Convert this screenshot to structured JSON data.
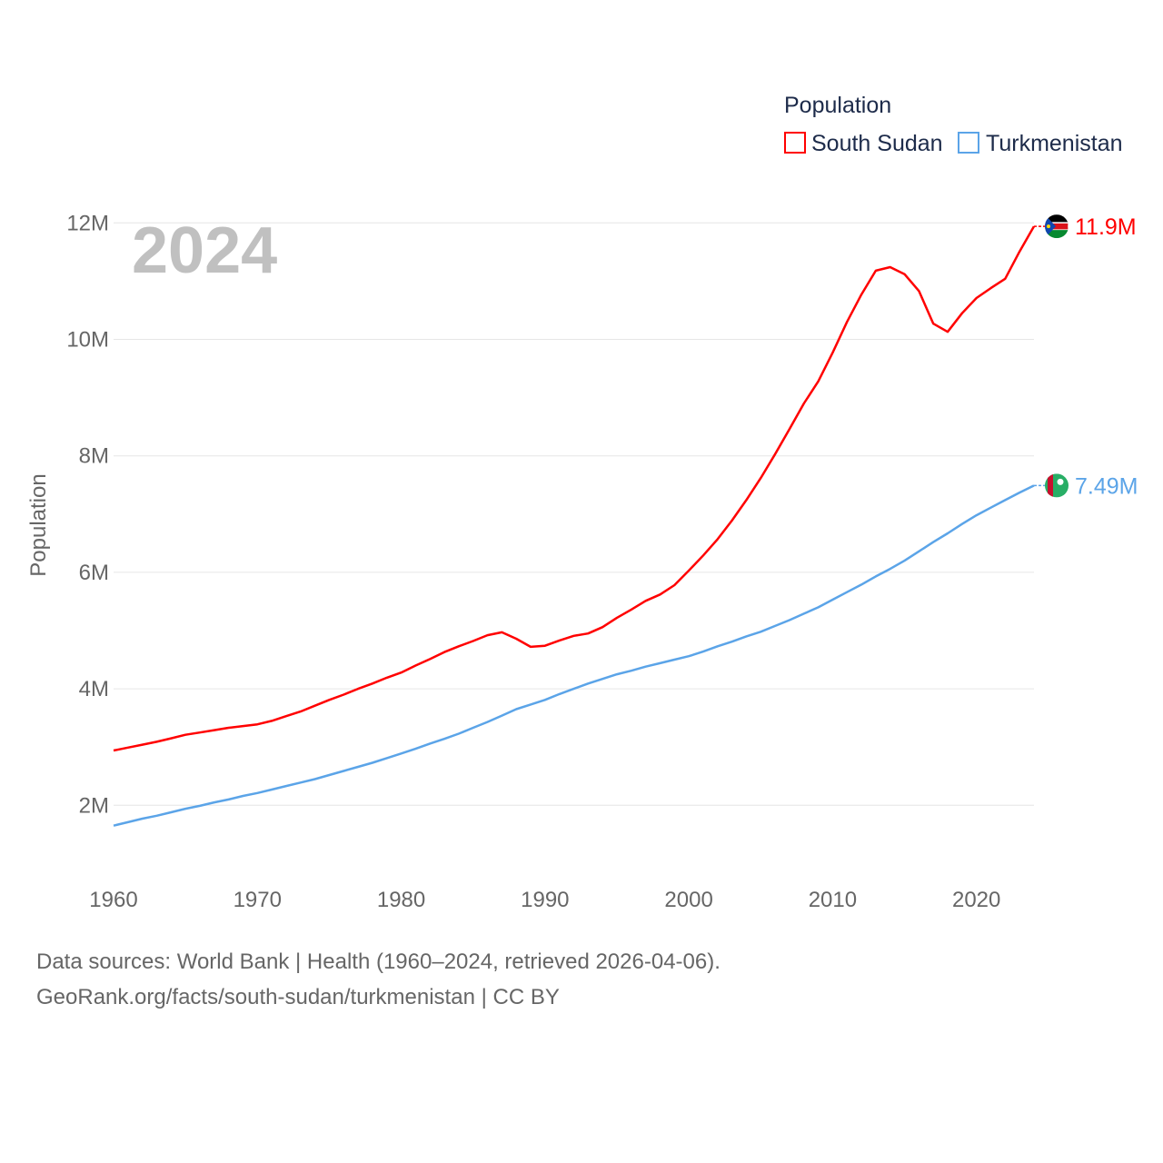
{
  "chart_data": {
    "type": "line",
    "year_label": "2024",
    "ylabel": "Population",
    "xlabel": "",
    "legend_title": "Population",
    "legend_position": "top-right",
    "xlim": [
      1960,
      2024
    ],
    "ylim": [
      0,
      12000000
    ],
    "x_ticks": [
      "1960",
      "1970",
      "1980",
      "1990",
      "2000",
      "2010",
      "2020"
    ],
    "y_ticks": [
      {
        "v": 2,
        "label": "2M"
      },
      {
        "v": 4,
        "label": "4M"
      },
      {
        "v": 6,
        "label": "6M"
      },
      {
        "v": 8,
        "label": "8M"
      },
      {
        "v": 10,
        "label": "10M"
      },
      {
        "v": 12,
        "label": "12M"
      }
    ],
    "grid": true,
    "x_start": 1960,
    "series": [
      {
        "name": "South Sudan",
        "color": "#ff0000",
        "end_label": "11.9M",
        "unit": "millions",
        "values": [
          2.94,
          2.99,
          3.04,
          3.09,
          3.15,
          3.21,
          3.25,
          3.29,
          3.33,
          3.36,
          3.39,
          3.45,
          3.53,
          3.61,
          3.71,
          3.81,
          3.9,
          4.0,
          4.09,
          4.19,
          4.28,
          4.4,
          4.51,
          4.63,
          4.73,
          4.82,
          4.92,
          4.97,
          4.86,
          4.72,
          4.74,
          4.83,
          4.91,
          4.95,
          5.06,
          5.22,
          5.36,
          5.51,
          5.62,
          5.78,
          6.03,
          6.29,
          6.57,
          6.89,
          7.24,
          7.62,
          8.03,
          8.46,
          8.9,
          9.28,
          9.77,
          10.3,
          10.77,
          11.18,
          11.24,
          11.12,
          10.83,
          10.27,
          10.13,
          10.45,
          10.71,
          10.88,
          11.04,
          11.51,
          11.94
        ]
      },
      {
        "name": "Turkmenistan",
        "color": "#5ba4e8",
        "end_label": "7.49M",
        "unit": "millions",
        "values": [
          1.65,
          1.71,
          1.77,
          1.82,
          1.88,
          1.94,
          1.99,
          2.05,
          2.1,
          2.16,
          2.21,
          2.27,
          2.33,
          2.39,
          2.45,
          2.52,
          2.59,
          2.66,
          2.73,
          2.81,
          2.89,
          2.97,
          3.06,
          3.14,
          3.23,
          3.33,
          3.43,
          3.54,
          3.65,
          3.73,
          3.81,
          3.91,
          4.0,
          4.09,
          4.17,
          4.25,
          4.31,
          4.38,
          4.44,
          4.5,
          4.56,
          4.64,
          4.73,
          4.81,
          4.9,
          4.98,
          5.08,
          5.18,
          5.29,
          5.4,
          5.53,
          5.66,
          5.79,
          5.93,
          6.06,
          6.2,
          6.36,
          6.52,
          6.67,
          6.83,
          6.98,
          7.11,
          7.24,
          7.37,
          7.49
        ]
      }
    ]
  },
  "footer": {
    "line1": "Data sources: World Bank | Health (1960–2024, retrieved 2026-04-06).",
    "line2": "GeoRank.org/facts/south-sudan/turkmenistan | CC BY"
  }
}
